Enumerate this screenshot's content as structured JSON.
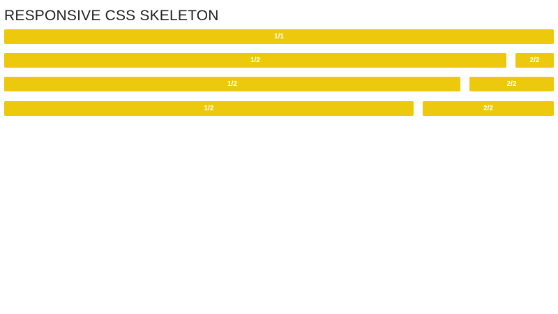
{
  "title": "RESPONSIVE CSS SKELETON",
  "accent_color": "#ecc90d",
  "rows": [
    {
      "cells": [
        "1/1"
      ]
    },
    {
      "cells": [
        "1/2",
        "2/2"
      ]
    },
    {
      "cells": [
        "1/2",
        "2/2"
      ]
    },
    {
      "cells": [
        "1/2",
        "2/2"
      ]
    }
  ]
}
